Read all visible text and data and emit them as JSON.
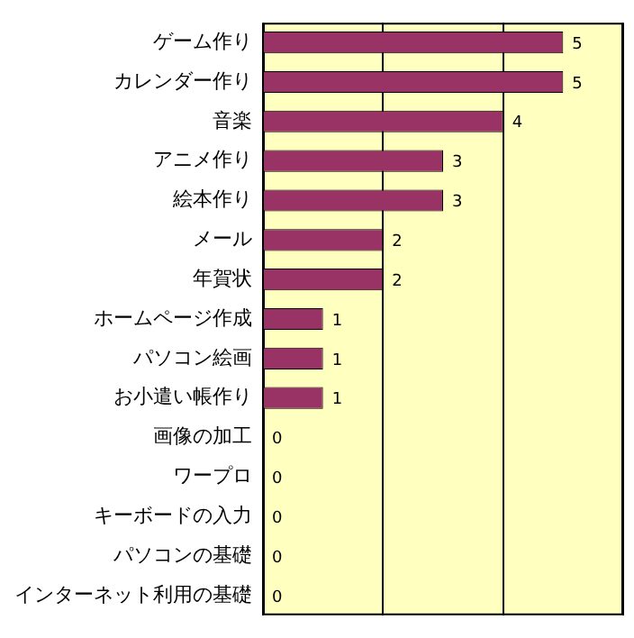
{
  "chart_data": {
    "type": "bar",
    "orientation": "horizontal",
    "categories": [
      "ゲーム作り",
      "カレンダー作り",
      "音楽",
      "アニメ作り",
      "絵本作り",
      "メール",
      "年賀状",
      "ホームページ作成",
      "パソコン絵画",
      "お小遣い帳作り",
      "画像の加工",
      "ワープロ",
      "キーボードの入力",
      "パソコンの基礎",
      "インターネット利用の基礎"
    ],
    "values": [
      5,
      5,
      4,
      3,
      3,
      2,
      2,
      1,
      1,
      1,
      0,
      0,
      0,
      0,
      0
    ],
    "color": "#993366",
    "xlim": [
      0,
      6
    ],
    "xticks": [
      {
        "value": 0,
        "label": null
      },
      {
        "value": 2,
        "label": null
      },
      {
        "value": 4,
        "label": null
      },
      {
        "value": 6,
        "label": null
      }
    ],
    "tick_labels": "y",
    "grid": "x",
    "data_labels": true,
    "legend": false
  }
}
